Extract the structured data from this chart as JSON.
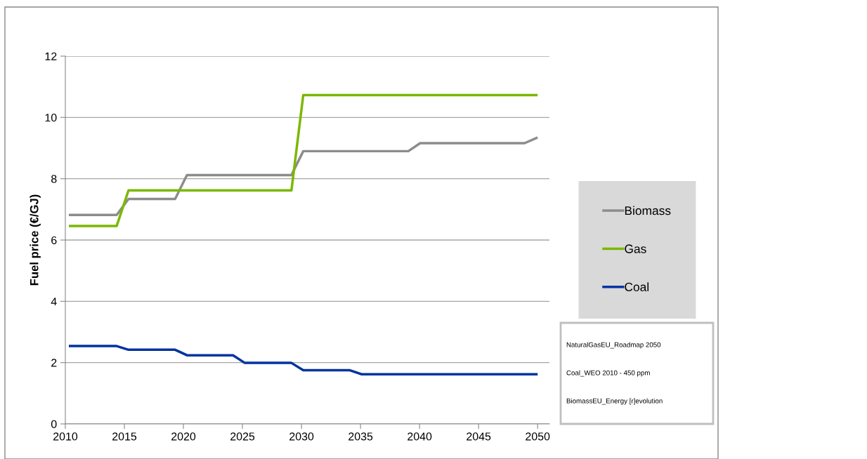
{
  "chart_data": {
    "type": "line",
    "ylabel": "Fuel price (€/GJ)",
    "xlim": [
      2010,
      2051
    ],
    "xticks": [
      2010,
      2015,
      2020,
      2025,
      2030,
      2035,
      2040,
      2045,
      2050
    ],
    "ylim": [
      0,
      12
    ],
    "yticks": [
      0,
      2,
      4,
      6,
      8,
      10,
      12
    ],
    "grid": "y",
    "legend": "right",
    "marker": "none",
    "line_style": "solid",
    "series": [
      {
        "name": "Biomass",
        "color": "#8c8c8c",
        "x": [
          2010.4,
          2014.35,
          2015.35,
          2019.3,
          2020.3,
          2029.15,
          2030.15,
          2039.05,
          2040.05,
          2048.9,
          2049.9
        ],
        "values": [
          6.82,
          6.82,
          7.34,
          7.34,
          8.12,
          8.12,
          8.9,
          8.9,
          9.16,
          9.16,
          9.33
        ]
      },
      {
        "name": "Gas",
        "color": "#7ab800",
        "x": [
          2010.4,
          2014.35,
          2015.35,
          2029.15,
          2030.15,
          2049.9
        ],
        "values": [
          6.46,
          6.46,
          7.62,
          7.62,
          10.73,
          10.73
        ]
      },
      {
        "name": "Coal",
        "color": "#0033a0",
        "x": [
          2010.4,
          2014.35,
          2015.35,
          2019.3,
          2020.3,
          2024.2,
          2025.2,
          2029.15,
          2030.15,
          2034.1,
          2035.1,
          2049.9
        ],
        "values": [
          2.54,
          2.54,
          2.42,
          2.42,
          2.24,
          2.24,
          1.99,
          1.99,
          1.75,
          1.75,
          1.62,
          1.62
        ]
      }
    ],
    "annotations": [
      "NaturalGasEU_Roadmap 2050",
      "Coal_WEO 2010 - 450 ppm",
      "BiomassEU_Energy [r]evolution"
    ]
  }
}
